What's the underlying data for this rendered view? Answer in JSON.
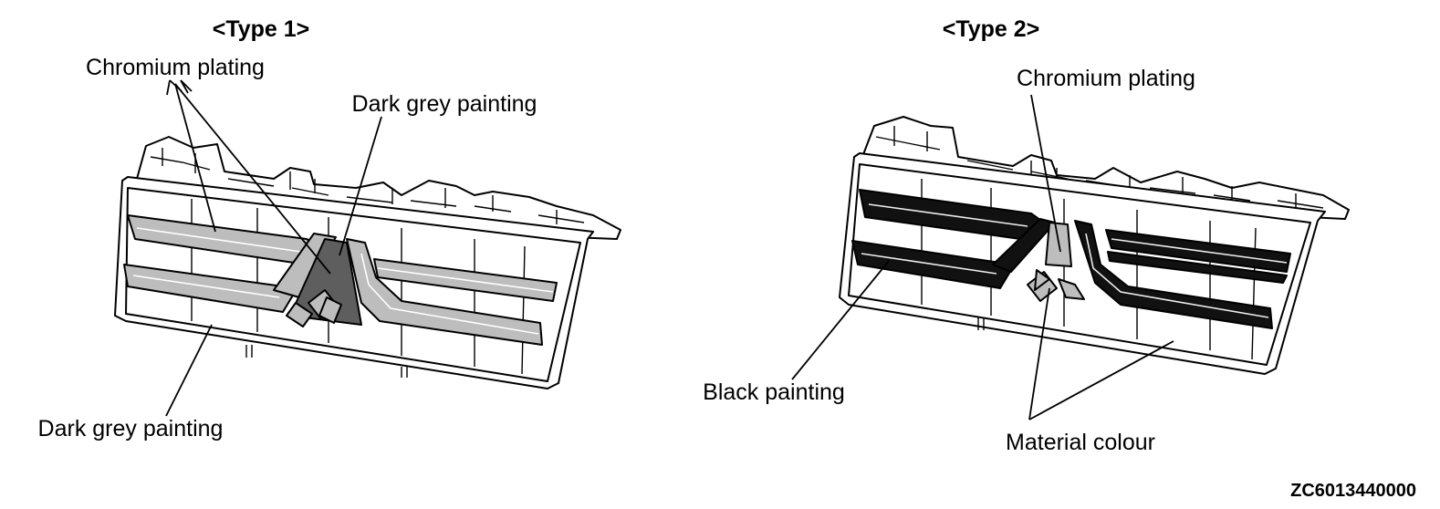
{
  "type1": {
    "title": "<Type 1>",
    "labels": {
      "chromium": "Chromium plating",
      "dark_grey_top": "Dark grey painting",
      "dark_grey_bottom": "Dark grey painting"
    }
  },
  "type2": {
    "title": "<Type 2>",
    "labels": {
      "chromium": "Chromium plating",
      "black": "Black painting",
      "material": "Material colour"
    }
  },
  "figure_code": "ZC6013440000",
  "colors": {
    "chromium": "#bdbdbd",
    "dark_grey": "#5e5e5e",
    "black": "#111111",
    "outline": "#000000"
  }
}
